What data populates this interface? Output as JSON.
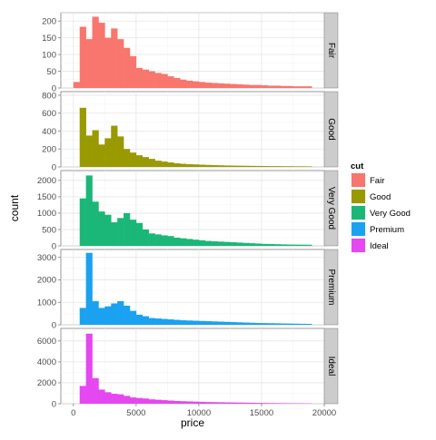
{
  "chart_data": {
    "type": "bar",
    "subtype": "faceted-histogram",
    "xlabel": "price",
    "ylabel": "count",
    "xlim": [
      -1000,
      20000
    ],
    "x_ticks": [
      0,
      5000,
      10000,
      15000,
      20000
    ],
    "x_tick_labels": [
      "0",
      "5000",
      "10000",
      "15000",
      "20000"
    ],
    "bin_width": 500,
    "bin_starts": [
      0,
      500,
      1000,
      1500,
      2000,
      2500,
      3000,
      3500,
      4000,
      4500,
      5000,
      5500,
      6000,
      6500,
      7000,
      7500,
      8000,
      8500,
      9000,
      9500,
      10000,
      10500,
      11000,
      11500,
      12000,
      12500,
      13000,
      13500,
      14000,
      14500,
      15000,
      15500,
      16000,
      16500,
      17000,
      17500,
      18000,
      18500
    ],
    "grid": true,
    "legend": {
      "title": "cut",
      "placement": "right",
      "items": [
        "Fair",
        "Good",
        "Very Good",
        "Premium",
        "Ideal"
      ]
    },
    "panels": [
      {
        "strip": "Fair",
        "color": "#F8766D",
        "ylim": [
          0,
          225
        ],
        "y_ticks": [
          0,
          50,
          100,
          150,
          200
        ],
        "values": [
          18,
          183,
          146,
          213,
          195,
          150,
          178,
          146,
          120,
          95,
          60,
          55,
          50,
          45,
          42,
          35,
          30,
          25,
          22,
          20,
          18,
          16,
          15,
          14,
          13,
          12,
          11,
          10,
          9,
          9,
          8,
          7,
          7,
          6,
          6,
          5,
          5,
          5
        ]
      },
      {
        "strip": "Good",
        "color": "#999900",
        "ylim": [
          0,
          840
        ],
        "y_ticks": [
          0,
          200,
          400,
          600,
          800
        ],
        "values": [
          0,
          660,
          350,
          410,
          250,
          320,
          460,
          340,
          200,
          160,
          130,
          110,
          90,
          70,
          60,
          50,
          40,
          35,
          30,
          28,
          25,
          22,
          20,
          18,
          16,
          15,
          14,
          13,
          12,
          11,
          10,
          9,
          9,
          8,
          8,
          7,
          7,
          6
        ]
      },
      {
        "strip": "Very Good",
        "color": "#1BB779",
        "ylim": [
          0,
          2300
        ],
        "y_ticks": [
          0,
          500,
          1000,
          1500,
          2000
        ],
        "values": [
          0,
          1450,
          2150,
          1350,
          1050,
          950,
          720,
          850,
          1000,
          800,
          700,
          500,
          380,
          350,
          320,
          300,
          250,
          230,
          210,
          190,
          170,
          150,
          140,
          130,
          120,
          110,
          100,
          90,
          80,
          70,
          60,
          55,
          50,
          45,
          40,
          38,
          36,
          34
        ]
      },
      {
        "strip": "Premium",
        "color": "#1AA2F0",
        "ylim": [
          0,
          3350
        ],
        "y_ticks": [
          0,
          1000,
          2000,
          3000
        ],
        "values": [
          0,
          750,
          3200,
          1050,
          750,
          820,
          950,
          1050,
          850,
          620,
          450,
          380,
          300,
          280,
          260,
          240,
          220,
          200,
          190,
          180,
          170,
          160,
          150,
          140,
          130,
          120,
          110,
          100,
          90,
          80,
          75,
          70,
          65,
          60,
          55,
          50,
          45,
          40
        ]
      },
      {
        "strip": "Ideal",
        "color": "#E547F0",
        "ylim": [
          0,
          7200
        ],
        "y_ticks": [
          0,
          2000,
          4000,
          6000
        ],
        "values": [
          0,
          1700,
          6700,
          2450,
          1350,
          1100,
          950,
          900,
          750,
          600,
          550,
          500,
          420,
          380,
          340,
          300,
          260,
          240,
          220,
          200,
          180,
          160,
          150,
          140,
          130,
          120,
          110,
          100,
          90,
          80,
          70,
          60,
          55,
          50,
          45,
          40,
          35,
          30
        ]
      }
    ]
  }
}
